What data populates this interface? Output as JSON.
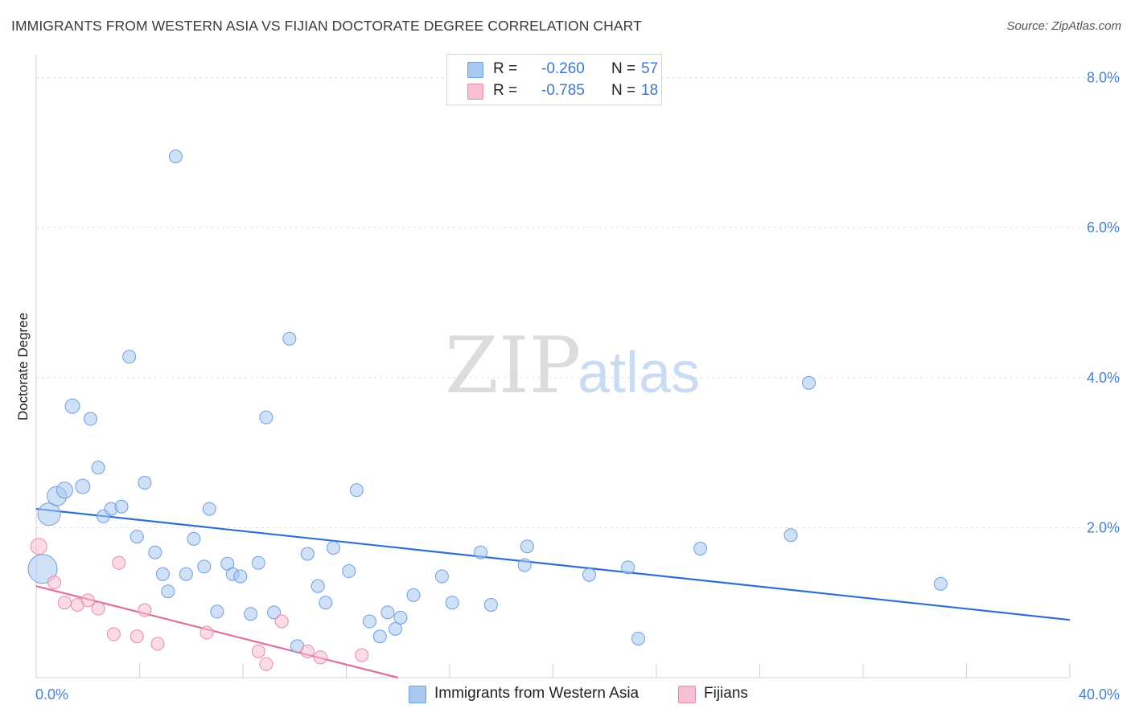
{
  "title": "IMMIGRANTS FROM WESTERN ASIA VS FIJIAN DOCTORATE DEGREE CORRELATION CHART",
  "source": "Source: ZipAtlas.com",
  "watermark": {
    "zip": "ZIP",
    "atlas": "atlas"
  },
  "legend": {
    "r_label": "R =",
    "n_label": "N =",
    "series": [
      {
        "r": "-0.260",
        "n": "57",
        "color": "#a9c8f0",
        "border": "#6d9fe0"
      },
      {
        "r": "-0.785",
        "n": "18",
        "color": "#f7bfd1",
        "border": "#e88aa8"
      }
    ]
  },
  "chart_data": {
    "type": "scatter",
    "title": "IMMIGRANTS FROM WESTERN ASIA VS FIJIAN DOCTORATE DEGREE CORRELATION CHART",
    "xlabel": "",
    "ylabel": "Doctorate Degree",
    "xlim": [
      0,
      40
    ],
    "ylim": [
      0,
      8.2
    ],
    "x_tick_labels": [
      "0.0%",
      "40.0%"
    ],
    "y_ticks": [
      2,
      4,
      6,
      8
    ],
    "y_tick_labels": [
      "2.0%",
      "4.0%",
      "6.0%",
      "8.0%"
    ],
    "series": [
      {
        "name": "Immigrants from Western Asia",
        "color": "#a9c8f0",
        "stroke": "#6d9fe0",
        "line_color": "#2f6fd0",
        "trend": {
          "x": [
            0,
            40
          ],
          "y": [
            2.25,
            0.77
          ]
        },
        "points": [
          [
            0.25,
            1.45,
            18
          ],
          [
            0.5,
            2.18,
            14
          ],
          [
            0.8,
            2.42,
            12
          ],
          [
            1.1,
            2.5,
            10
          ],
          [
            1.4,
            3.62,
            9
          ],
          [
            1.8,
            2.55,
            9
          ],
          [
            2.1,
            3.45,
            8
          ],
          [
            2.4,
            2.8,
            8
          ],
          [
            2.6,
            2.15,
            8
          ],
          [
            2.9,
            2.25,
            8
          ],
          [
            3.3,
            2.28,
            8
          ],
          [
            3.6,
            4.28,
            8
          ],
          [
            3.9,
            1.88,
            8
          ],
          [
            4.2,
            2.6,
            8
          ],
          [
            4.6,
            1.67,
            8
          ],
          [
            4.9,
            1.38,
            8
          ],
          [
            5.1,
            1.15,
            8
          ],
          [
            5.4,
            6.95,
            8
          ],
          [
            5.8,
            1.38,
            8
          ],
          [
            6.1,
            1.85,
            8
          ],
          [
            6.5,
            1.48,
            8
          ],
          [
            6.7,
            2.25,
            8
          ],
          [
            7.0,
            0.88,
            8
          ],
          [
            7.4,
            1.52,
            8
          ],
          [
            7.6,
            1.38,
            8
          ],
          [
            7.9,
            1.35,
            8
          ],
          [
            8.3,
            0.85,
            8
          ],
          [
            8.6,
            1.53,
            8
          ],
          [
            8.9,
            3.47,
            8
          ],
          [
            9.2,
            0.87,
            8
          ],
          [
            9.8,
            4.52,
            8
          ],
          [
            10.1,
            0.42,
            8
          ],
          [
            10.5,
            1.65,
            8
          ],
          [
            10.9,
            1.22,
            8
          ],
          [
            11.2,
            1.0,
            8
          ],
          [
            11.5,
            1.73,
            8
          ],
          [
            12.1,
            1.42,
            8
          ],
          [
            12.4,
            2.5,
            8
          ],
          [
            12.9,
            0.75,
            8
          ],
          [
            13.3,
            0.55,
            8
          ],
          [
            13.6,
            0.87,
            8
          ],
          [
            13.9,
            0.65,
            8
          ],
          [
            14.1,
            0.8,
            8
          ],
          [
            14.6,
            1.1,
            8
          ],
          [
            15.7,
            1.35,
            8
          ],
          [
            16.1,
            1.0,
            8
          ],
          [
            17.2,
            1.67,
            8
          ],
          [
            17.6,
            0.97,
            8
          ],
          [
            18.9,
            1.5,
            8
          ],
          [
            19.0,
            1.75,
            8
          ],
          [
            21.4,
            1.37,
            8
          ],
          [
            22.9,
            1.47,
            8
          ],
          [
            23.3,
            0.52,
            8
          ],
          [
            25.7,
            1.72,
            8
          ],
          [
            29.2,
            1.9,
            8
          ],
          [
            29.9,
            3.93,
            8
          ],
          [
            35.0,
            1.25,
            8
          ]
        ]
      },
      {
        "name": "Fijians",
        "color": "#f7bfd1",
        "stroke": "#e88aa8",
        "line_color": "#e0709a",
        "trend": {
          "x": [
            0,
            14.0
          ],
          "y": [
            1.22,
            0.0
          ]
        },
        "points": [
          [
            0.1,
            1.75,
            10
          ],
          [
            0.7,
            1.27,
            8
          ],
          [
            1.1,
            1.0,
            8
          ],
          [
            1.6,
            0.97,
            8
          ],
          [
            2.0,
            1.03,
            8
          ],
          [
            2.4,
            0.92,
            8
          ],
          [
            3.0,
            0.58,
            8
          ],
          [
            3.2,
            1.53,
            8
          ],
          [
            3.9,
            0.55,
            8
          ],
          [
            4.2,
            0.9,
            8
          ],
          [
            4.7,
            0.45,
            8
          ],
          [
            6.6,
            0.6,
            8
          ],
          [
            8.6,
            0.35,
            8
          ],
          [
            8.9,
            0.18,
            8
          ],
          [
            9.5,
            0.75,
            8
          ],
          [
            10.5,
            0.35,
            8
          ],
          [
            11.0,
            0.27,
            8
          ],
          [
            12.6,
            0.3,
            8
          ]
        ]
      }
    ]
  }
}
